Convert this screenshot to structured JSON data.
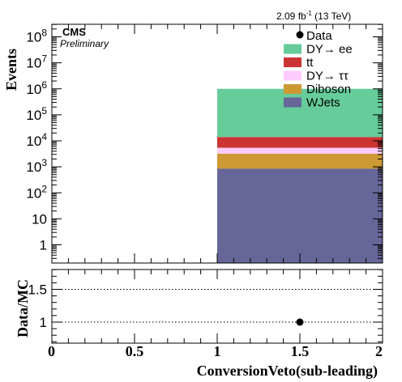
{
  "lumi_label": {
    "value": "2.09 fb",
    "sup": "-1",
    "energy": " (13 TeV)"
  },
  "experiment": {
    "name": "CMS",
    "status": "Preliminary"
  },
  "chart_data": [
    {
      "type": "bar",
      "subtype": "stacked-histogram",
      "log_y": true,
      "ylabel": "Events",
      "xlabel": "ConversionVeto(sub-leading)",
      "xlim": [
        0,
        2
      ],
      "ylim": [
        0.3,
        300000000
      ],
      "y_ticks": [
        {
          "value": 1,
          "label": "1"
        },
        {
          "value": 10,
          "label": "10"
        },
        {
          "value": 100,
          "label": "10",
          "exp": "2"
        },
        {
          "value": 1000,
          "label": "10",
          "exp": "3"
        },
        {
          "value": 10000,
          "label": "10",
          "exp": "4"
        },
        {
          "value": 100000,
          "label": "10",
          "exp": "5"
        },
        {
          "value": 1000000,
          "label": "10",
          "exp": "6"
        },
        {
          "value": 10000000,
          "label": "10",
          "exp": "7"
        },
        {
          "value": 100000000,
          "label": "10",
          "exp": "8"
        }
      ],
      "bin_edges": [
        1,
        2
      ],
      "stack_bottom_to_top": [
        {
          "name": "WJets",
          "color": "#666699",
          "values": [
            850
          ]
        },
        {
          "name": "Diboson",
          "color": "#cc9933",
          "values": [
            2350
          ]
        },
        {
          "name": "DY→ ττ",
          "color": "#ffccff",
          "values": [
            2200
          ]
        },
        {
          "name": "tt",
          "color": "#cc3333",
          "values": [
            8600
          ]
        },
        {
          "name": "DY→ ee",
          "color": "#66cc99",
          "values": [
            986000
          ]
        }
      ],
      "data_points": [],
      "legend": {
        "placement": "top-right",
        "entries": [
          {
            "label": "Data",
            "marker": "dot",
            "color": "#000000"
          },
          {
            "label": "DY→ ee",
            "marker": "box",
            "color": "#66cc99"
          },
          {
            "label": "tt",
            "marker": "box",
            "color": "#cc3333"
          },
          {
            "label": "DY→ ττ",
            "marker": "box",
            "color": "#ffccff"
          },
          {
            "label": "Diboson",
            "marker": "box",
            "color": "#cc9933"
          },
          {
            "label": "WJets",
            "marker": "box",
            "color": "#666699"
          }
        ]
      }
    },
    {
      "type": "scatter",
      "ylabel": "Data/MC",
      "xlabel": "ConversionVeto(sub-leading)",
      "xlim": [
        0,
        2
      ],
      "ylim": [
        0.5,
        2.0
      ],
      "x_ticks": [
        "0",
        "0.5",
        "1",
        "1.5",
        "2"
      ],
      "y_ticks": [
        "1",
        "1.5"
      ],
      "gridlines_y": [
        1,
        1.5
      ],
      "points": [
        {
          "x": 1.5,
          "y": 1.0
        }
      ]
    }
  ]
}
